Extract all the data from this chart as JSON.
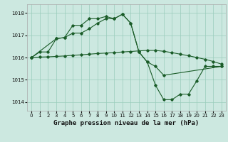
{
  "title": "Graphe pression niveau de la mer (hPa)",
  "bg_color": "#cce8e0",
  "grid_color": "#99ccbb",
  "line_color": "#1a5c28",
  "xlim": [
    -0.5,
    23.5
  ],
  "ylim": [
    1013.6,
    1018.4
  ],
  "yticks": [
    1014,
    1015,
    1016,
    1017,
    1018
  ],
  "xticks": [
    0,
    1,
    2,
    3,
    4,
    5,
    6,
    7,
    8,
    9,
    10,
    11,
    12,
    13,
    14,
    15,
    16,
    17,
    18,
    19,
    20,
    21,
    22,
    23
  ],
  "series1_x": [
    0,
    1,
    2,
    3,
    4,
    5,
    6,
    7,
    8,
    9,
    10,
    11,
    12,
    13,
    14,
    15,
    16,
    17,
    18,
    19,
    20,
    21,
    22,
    23
  ],
  "series1_y": [
    1016.0,
    1016.25,
    1016.25,
    1016.85,
    1016.9,
    1017.45,
    1017.45,
    1017.75,
    1017.75,
    1017.85,
    1017.75,
    1017.95,
    1017.55,
    1016.25,
    1015.8,
    1014.75,
    1014.1,
    1014.1,
    1014.35,
    1014.35,
    1014.95,
    1015.6,
    1015.6,
    1015.6
  ],
  "series2_x": [
    0,
    3,
    4,
    5,
    6,
    7,
    8,
    9,
    10,
    11,
    12,
    13,
    14,
    15,
    16,
    23
  ],
  "series2_y": [
    1016.0,
    1016.85,
    1016.9,
    1017.1,
    1017.1,
    1017.3,
    1017.55,
    1017.75,
    1017.75,
    1017.95,
    1017.55,
    1016.25,
    1015.8,
    1015.6,
    1015.2,
    1015.6
  ],
  "series3_x": [
    0,
    1,
    2,
    3,
    4,
    5,
    6,
    7,
    8,
    9,
    10,
    11,
    12,
    13,
    14,
    15,
    16,
    17,
    18,
    19,
    20,
    21,
    22,
    23
  ],
  "series3_y": [
    1016.0,
    1016.02,
    1016.03,
    1016.05,
    1016.07,
    1016.1,
    1016.12,
    1016.15,
    1016.18,
    1016.2,
    1016.22,
    1016.25,
    1016.27,
    1016.3,
    1016.32,
    1016.32,
    1016.28,
    1016.22,
    1016.15,
    1016.08,
    1016.0,
    1015.92,
    1015.82,
    1015.7
  ],
  "title_fontsize": 6.5,
  "tick_fontsize": 5.0
}
